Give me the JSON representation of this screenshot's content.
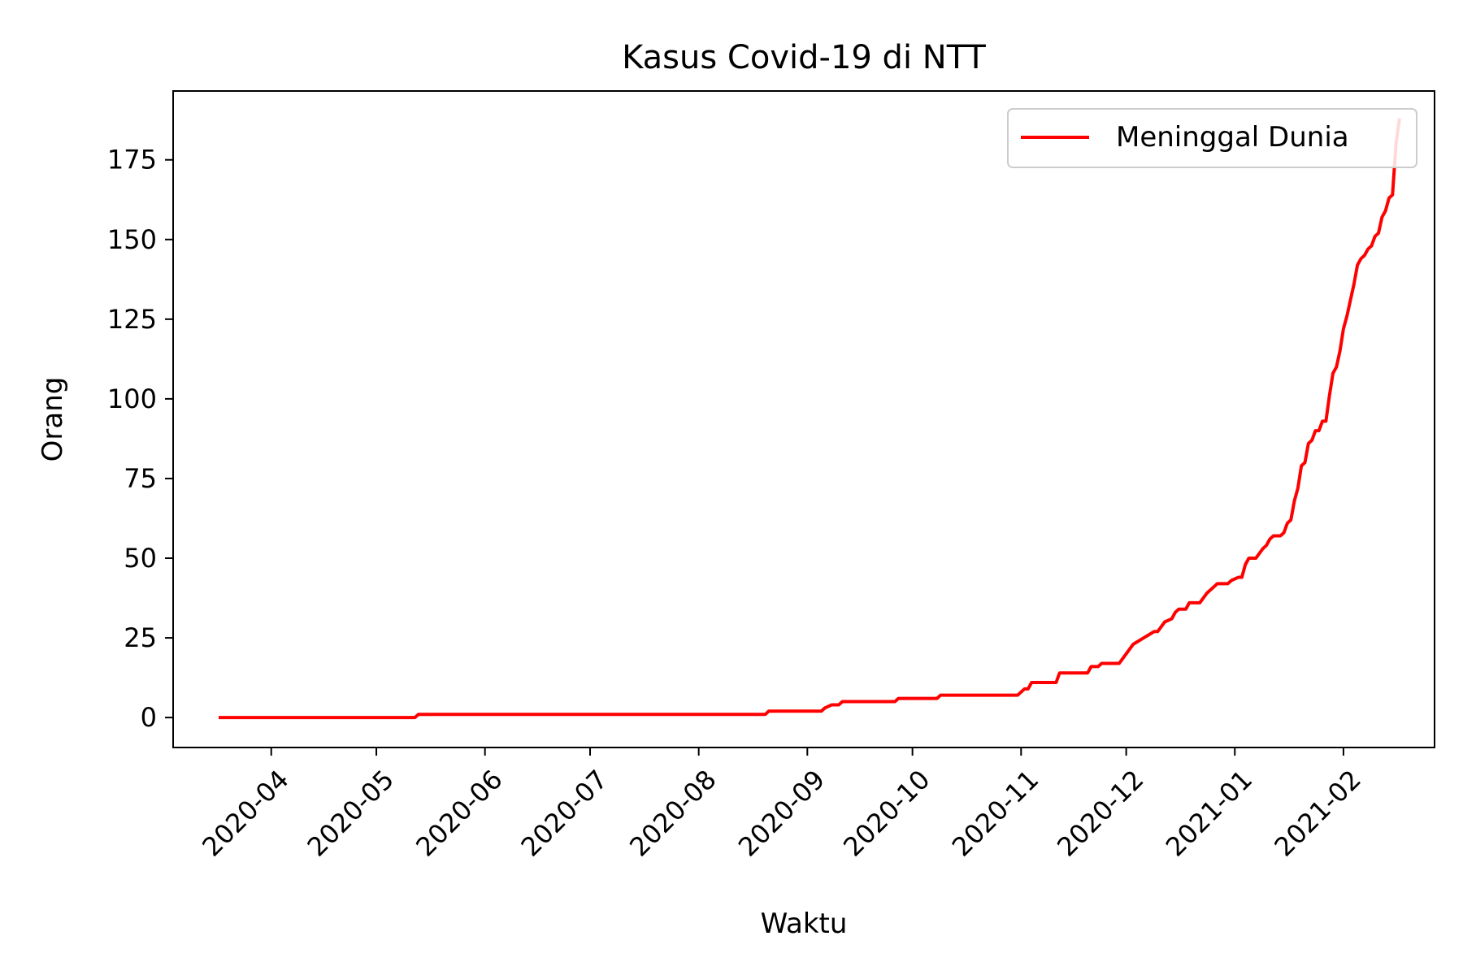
{
  "chart_data": {
    "type": "line",
    "title": "Kasus Covid-19 di NTT",
    "xlabel": "Waktu",
    "ylabel": "Orang",
    "x_axis_type": "date",
    "xlim": [
      "2020-03-04",
      "2021-02-27"
    ],
    "ylim": [
      -9.4,
      196.6
    ],
    "x_ticks": [
      "2020-04-01",
      "2020-05-01",
      "2020-06-01",
      "2020-07-01",
      "2020-08-01",
      "2020-09-01",
      "2020-10-01",
      "2020-11-01",
      "2020-12-01",
      "2021-01-01",
      "2021-02-01"
    ],
    "x_tick_labels": [
      "2020-04",
      "2020-05",
      "2020-06",
      "2020-07",
      "2020-08",
      "2020-09",
      "2020-10",
      "2020-11",
      "2020-12",
      "2021-01",
      "2021-02"
    ],
    "y_ticks": [
      0,
      25,
      50,
      75,
      100,
      125,
      150,
      175
    ],
    "y_tick_labels": [
      "0",
      "25",
      "50",
      "75",
      "100",
      "125",
      "150",
      "175"
    ],
    "grid": false,
    "legend_position": "top-right",
    "series": [
      {
        "name": "Meninggal Dunia",
        "color": "#ff0000",
        "points": [
          [
            "2020-03-17",
            0
          ],
          [
            "2020-05-12",
            0
          ],
          [
            "2020-05-13",
            1
          ],
          [
            "2020-08-20",
            1
          ],
          [
            "2020-08-21",
            2
          ],
          [
            "2020-09-05",
            2
          ],
          [
            "2020-09-06",
            3
          ],
          [
            "2020-09-08",
            4
          ],
          [
            "2020-09-10",
            4
          ],
          [
            "2020-09-11",
            5
          ],
          [
            "2020-09-26",
            5
          ],
          [
            "2020-09-27",
            6
          ],
          [
            "2020-10-08",
            6
          ],
          [
            "2020-10-09",
            7
          ],
          [
            "2020-10-31",
            7
          ],
          [
            "2020-11-02",
            9
          ],
          [
            "2020-11-03",
            9
          ],
          [
            "2020-11-04",
            11
          ],
          [
            "2020-11-11",
            11
          ],
          [
            "2020-11-12",
            14
          ],
          [
            "2020-11-20",
            14
          ],
          [
            "2020-11-21",
            16
          ],
          [
            "2020-11-23",
            16
          ],
          [
            "2020-11-24",
            17
          ],
          [
            "2020-11-29",
            17
          ],
          [
            "2020-12-01",
            20
          ],
          [
            "2020-12-03",
            23
          ],
          [
            "2020-12-06",
            25
          ],
          [
            "2020-12-09",
            27
          ],
          [
            "2020-12-10",
            27
          ],
          [
            "2020-12-12",
            30
          ],
          [
            "2020-12-14",
            31
          ],
          [
            "2020-12-15",
            33
          ],
          [
            "2020-12-16",
            34
          ],
          [
            "2020-12-18",
            34
          ],
          [
            "2020-12-19",
            36
          ],
          [
            "2020-12-22",
            36
          ],
          [
            "2020-12-24",
            39
          ],
          [
            "2020-12-26",
            41
          ],
          [
            "2020-12-27",
            42
          ],
          [
            "2020-12-30",
            42
          ],
          [
            "2020-12-31",
            43
          ],
          [
            "2021-01-02",
            44
          ],
          [
            "2021-01-03",
            44
          ],
          [
            "2021-01-04",
            48
          ],
          [
            "2021-01-05",
            50
          ],
          [
            "2021-01-07",
            50
          ],
          [
            "2021-01-09",
            53
          ],
          [
            "2021-01-10",
            54
          ],
          [
            "2021-01-11",
            56
          ],
          [
            "2021-01-12",
            57
          ],
          [
            "2021-01-14",
            57
          ],
          [
            "2021-01-15",
            58
          ],
          [
            "2021-01-16",
            61
          ],
          [
            "2021-01-17",
            62
          ],
          [
            "2021-01-18",
            68
          ],
          [
            "2021-01-19",
            72
          ],
          [
            "2021-01-20",
            79
          ],
          [
            "2021-01-21",
            80
          ],
          [
            "2021-01-22",
            86
          ],
          [
            "2021-01-23",
            87
          ],
          [
            "2021-01-24",
            90
          ],
          [
            "2021-01-25",
            90
          ],
          [
            "2021-01-26",
            93
          ],
          [
            "2021-01-27",
            93
          ],
          [
            "2021-01-28",
            101
          ],
          [
            "2021-01-29",
            108
          ],
          [
            "2021-01-30",
            110
          ],
          [
            "2021-01-31",
            115
          ],
          [
            "2021-02-01",
            122
          ],
          [
            "2021-02-02",
            126
          ],
          [
            "2021-02-03",
            131
          ],
          [
            "2021-02-04",
            136
          ],
          [
            "2021-02-05",
            142
          ],
          [
            "2021-02-06",
            144
          ],
          [
            "2021-02-07",
            145
          ],
          [
            "2021-02-08",
            147
          ],
          [
            "2021-02-09",
            148
          ],
          [
            "2021-02-10",
            151
          ],
          [
            "2021-02-11",
            152
          ],
          [
            "2021-02-12",
            157
          ],
          [
            "2021-02-13",
            159
          ],
          [
            "2021-02-14",
            163
          ],
          [
            "2021-02-15",
            164
          ],
          [
            "2021-02-16",
            180
          ],
          [
            "2021-02-17",
            188
          ]
        ]
      }
    ]
  }
}
